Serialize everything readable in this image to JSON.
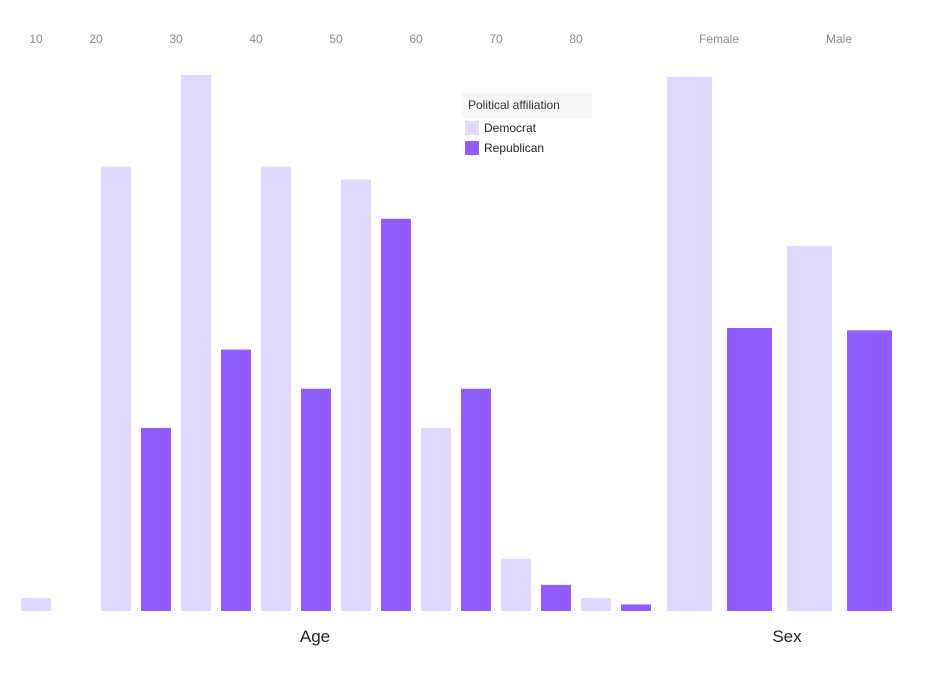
{
  "chart_data": [
    {
      "type": "bar",
      "title": "",
      "xlabel": "Age",
      "ylabel": "",
      "x_ticks": [
        "10",
        "20",
        "30",
        "40",
        "50",
        "60",
        "70",
        "80"
      ],
      "categories": [
        "10",
        "20",
        "30",
        "40",
        "50",
        "60",
        "70",
        "80"
      ],
      "series": [
        {
          "name": "Democrat",
          "values": [
            1,
            34,
            41,
            34,
            33,
            14,
            4,
            1
          ]
        },
        {
          "name": "Republican",
          "values": [
            0,
            14,
            20,
            17,
            30,
            17,
            2,
            0.5
          ]
        }
      ],
      "ylim": [
        0,
        41
      ],
      "grid": false
    },
    {
      "type": "bar",
      "title": "",
      "xlabel": "Sex",
      "ylabel": "",
      "categories": [
        "Female",
        "Male"
      ],
      "series": [
        {
          "name": "Democrat",
          "values": [
            117,
            80
          ]
        },
        {
          "name": "Republican",
          "values": [
            62,
            61.5
          ]
        }
      ],
      "ylim": [
        0,
        117
      ],
      "grid": false
    }
  ],
  "legend": {
    "title": "Political affiliation",
    "placement": "top-right of Age chart",
    "items": [
      {
        "label": "Democrat",
        "color": "#e0d9fd"
      },
      {
        "label": "Republican",
        "color": "#8f5cff"
      }
    ]
  }
}
